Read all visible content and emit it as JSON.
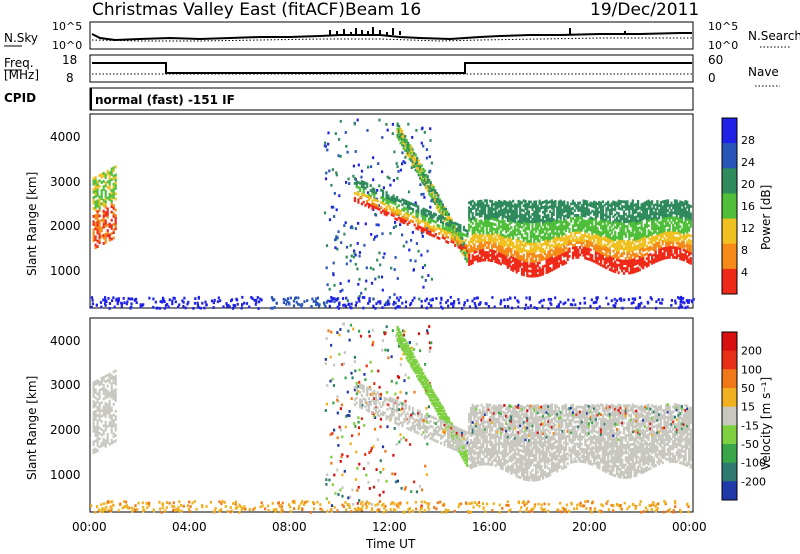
{
  "header": {
    "title": "Christmas Valley East (fitACF)",
    "beam": "Beam 16",
    "date": "19/Dec/2011"
  },
  "noise_panel": {
    "left_label": "N.Sky",
    "right_label": "N.Search",
    "ticks": [
      "10^5",
      "10^0"
    ]
  },
  "freq_panel": {
    "left_label": "Freq.",
    "left_units": "[MHz]",
    "left_ticks": [
      "18",
      "8"
    ],
    "right_label": "Nave",
    "right_ticks": [
      "60",
      "0"
    ]
  },
  "cpid": {
    "label": "CPID",
    "text": "normal (fast) -151 IF"
  },
  "x_axis": {
    "ticks": [
      "00:00",
      "04:00",
      "08:00",
      "12:00",
      "16:00",
      "20:00",
      "00:00"
    ],
    "label": "Time UT"
  },
  "power_panel": {
    "ylabel": "Slant Range [km]",
    "yticks": [
      "1000",
      "2000",
      "3000",
      "4000"
    ],
    "cbar_label": "Power [dB]",
    "cbar_ticks": [
      "4",
      "8",
      "12",
      "16",
      "20",
      "24",
      "28"
    ],
    "cbar_colors": [
      "#1f22e6",
      "#2a55b8",
      "#2f8a5c",
      "#4fbf3a",
      "#f0c020",
      "#f58a18",
      "#ef2a18"
    ]
  },
  "velocity_panel": {
    "ylabel": "Slant Range [km]",
    "yticks": [
      "1000",
      "2000",
      "3000",
      "4000"
    ],
    "cbar_label": "Velocity [m s⁻¹]",
    "cbar_ticks": [
      "200",
      "100",
      "50",
      "15",
      "-15",
      "-50",
      "-100",
      "-200"
    ],
    "cbar_colors": [
      "#1f3aa8",
      "#2f7a70",
      "#3aa64a",
      "#7ed040",
      "#c8c8c0",
      "#f0b020",
      "#f07818",
      "#e83018",
      "#d81010"
    ]
  },
  "chart_data": [
    {
      "type": "line",
      "title": "Christmas Valley East (fitACF)",
      "subtitle": "Beam 16",
      "date": "19/Dec/2011",
      "xlabel": "",
      "ylabel": "N.Sky",
      "x": [
        "00:00",
        "04:00",
        "08:00",
        "12:00",
        "16:00",
        "20:00",
        "00:00"
      ],
      "series": [
        {
          "name": "N.Sky"
        },
        {
          "name": "N.Search"
        }
      ],
      "yticks": [
        "10^0",
        "10^5"
      ]
    },
    {
      "type": "line",
      "ylabel": "Freq. [MHz]",
      "ylim": [
        8,
        18
      ],
      "y2label": "Nave",
      "y2lim": [
        0,
        60
      ],
      "x": [
        "00:00",
        "04:00",
        "08:00",
        "12:00",
        "16:00",
        "20:00",
        "00:00"
      ],
      "series": [
        {
          "name": "Nave"
        }
      ],
      "freq_steps": [
        {
          "from": "00:00",
          "to": "03:00",
          "freq": 14
        },
        {
          "from": "03:00",
          "to": "15:00",
          "freq": 10
        },
        {
          "from": "15:00",
          "to": "24:00",
          "freq": 14
        }
      ]
    },
    {
      "type": "heatmap",
      "quantity": "Power",
      "ylabel": "Slant Range [km]",
      "xlabel": "",
      "x_range": [
        "00:00",
        "00:00"
      ],
      "ylim": [
        180,
        4500
      ],
      "colorbar": {
        "label": "Power [dB]",
        "range": [
          0,
          30
        ],
        "ticks": [
          4,
          8,
          12,
          16,
          20,
          24,
          28
        ]
      }
    },
    {
      "type": "heatmap",
      "quantity": "Velocity",
      "ylabel": "Slant Range [km]",
      "xlabel": "Time UT",
      "x_range": [
        "00:00",
        "00:00"
      ],
      "ylim": [
        180,
        4500
      ],
      "colorbar": {
        "label": "Velocity [m s⁻¹]",
        "range": [
          -200,
          200
        ],
        "ticks": [
          200,
          100,
          50,
          15,
          -15,
          -50,
          -100,
          -200
        ]
      }
    }
  ]
}
